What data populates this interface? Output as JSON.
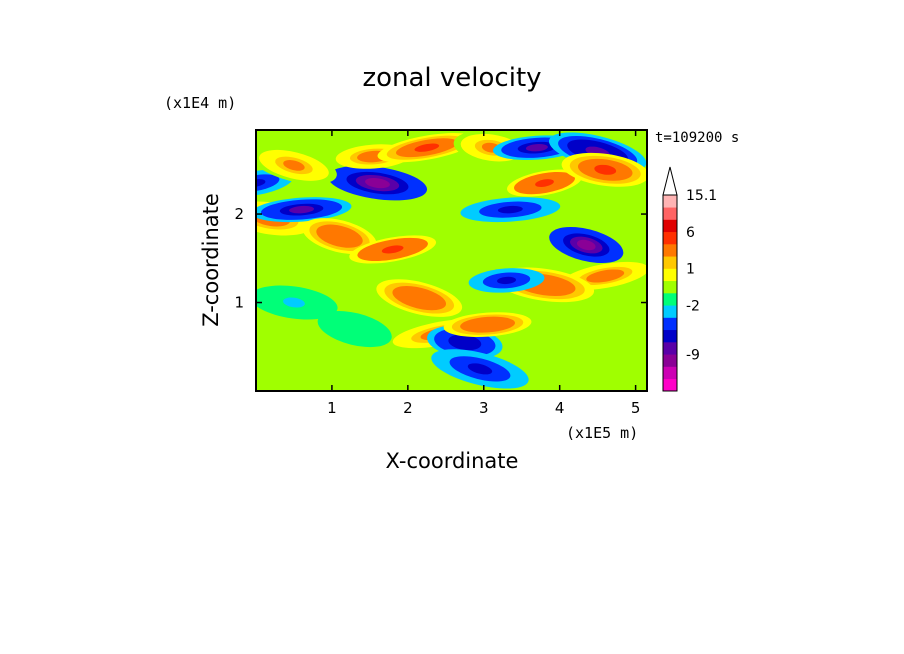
{
  "chart_data": {
    "type": "heatmap",
    "title": "zonal velocity",
    "xlabel": "X-coordinate",
    "ylabel": "Z-coordinate",
    "x_scale_label": "(x1E5 m)",
    "y_scale_label": "(x1E4 m)",
    "time_label": "t=109200 s",
    "xlim": [
      0,
      5.15
    ],
    "ylim": [
      0,
      2.95
    ],
    "x_ticks": [
      1,
      2,
      3,
      4,
      5
    ],
    "x_tick_labels": [
      "1",
      "2",
      "3",
      "4",
      "5"
    ],
    "y_ticks": [
      1,
      2
    ],
    "y_tick_labels": [
      "1",
      "2"
    ],
    "colorbar": {
      "levels_low_to_high": [
        "#ff00c8",
        "#cc00b4",
        "#8a0096",
        "#5a00a8",
        "#0000c8",
        "#0030ff",
        "#00ccff",
        "#00ff78",
        "#a0ff00",
        "#ffff00",
        "#ffc800",
        "#ff7800",
        "#ff3000",
        "#e00000",
        "#ff6464",
        "#ffb4b4"
      ],
      "labels": [
        "-9",
        "-2",
        "1",
        "6",
        "15.1"
      ],
      "extend_max": true
    },
    "field_features": [
      {
        "x": 0.0,
        "z": 2.35,
        "value": -4
      },
      {
        "x": 0.2,
        "z": 1.95,
        "value": 4
      },
      {
        "x": 0.6,
        "z": 2.05,
        "value": -6
      },
      {
        "x": 1.1,
        "z": 1.75,
        "value": 5
      },
      {
        "x": 1.8,
        "z": 1.6,
        "value": 7
      },
      {
        "x": 1.6,
        "z": 2.35,
        "value": -8
      },
      {
        "x": 1.55,
        "z": 2.65,
        "value": 4
      },
      {
        "x": 0.5,
        "z": 2.55,
        "value": 3
      },
      {
        "x": 2.25,
        "z": 2.75,
        "value": 6
      },
      {
        "x": 3.1,
        "z": 2.75,
        "value": 3
      },
      {
        "x": 3.7,
        "z": 2.75,
        "value": -6
      },
      {
        "x": 4.5,
        "z": 2.7,
        "value": -7
      },
      {
        "x": 3.8,
        "z": 2.35,
        "value": 7
      },
      {
        "x": 4.6,
        "z": 2.5,
        "value": 6
      },
      {
        "x": 3.35,
        "z": 2.05,
        "value": -4
      },
      {
        "x": 4.35,
        "z": 1.65,
        "value": -8
      },
      {
        "x": 4.6,
        "z": 1.3,
        "value": 4
      },
      {
        "x": 3.8,
        "z": 1.2,
        "value": 5
      },
      {
        "x": 3.3,
        "z": 1.25,
        "value": -4
      },
      {
        "x": 2.15,
        "z": 1.05,
        "value": 5
      },
      {
        "x": 2.45,
        "z": 0.65,
        "value": 4
      },
      {
        "x": 2.75,
        "z": 0.55,
        "value": -5
      },
      {
        "x": 3.05,
        "z": 0.75,
        "value": 5
      },
      {
        "x": 2.95,
        "z": 0.25,
        "value": -4
      },
      {
        "x": 0.7,
        "z": 0.35,
        "value": 0.5
      },
      {
        "x": 0.5,
        "z": 1.0,
        "value": -1
      },
      {
        "x": 4.4,
        "z": 0.35,
        "value": 0.5
      },
      {
        "x": 1.3,
        "z": 0.7,
        "value": -0.5
      }
    ]
  }
}
